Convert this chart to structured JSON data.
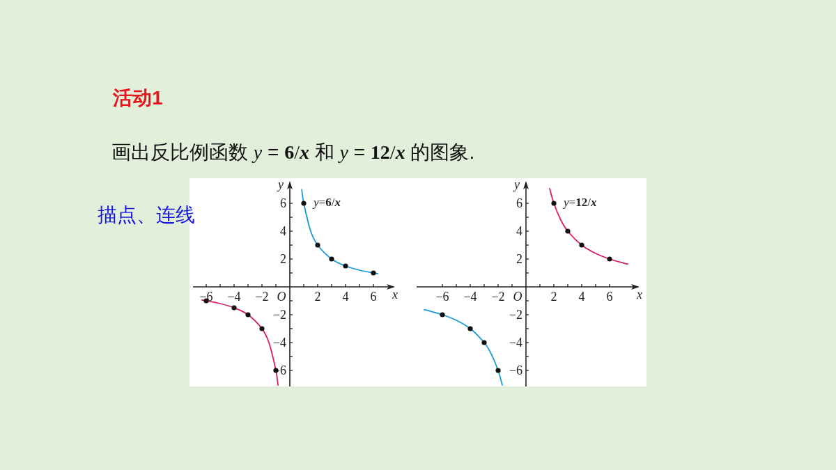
{
  "chart_data": [
    {
      "type": "line",
      "title": "画出反比例函数 y = 6/x 和 y = 12/x 的图象.",
      "annotations": [
        "活动1",
        "描点、连线",
        "O"
      ],
      "xlabel": "x",
      "ylabel": "y",
      "xlim": [
        -6.95,
        7.55
      ],
      "ylim": [
        -7.15,
        7.6
      ],
      "xticks": [
        -6,
        {
          "value": -5,
          "label": null
        },
        -4,
        {
          "value": -3,
          "label": null
        },
        -2,
        {
          "value": -1,
          "label": null
        },
        {
          "value": 1,
          "label": null
        },
        2,
        {
          "value": 3,
          "label": null
        },
        4,
        {
          "value": 5,
          "label": null
        },
        6
      ],
      "yticks": [
        -6,
        {
          "value": -5,
          "label": null
        },
        -4,
        {
          "value": -3,
          "label": null
        },
        -2,
        {
          "value": -1,
          "label": null
        },
        {
          "value": 1,
          "label": null
        },
        2,
        {
          "value": 3,
          "label": null
        },
        4,
        {
          "value": 5,
          "label": null
        },
        6
      ],
      "series": [
        {
          "name": "y=6/x",
          "color": "#1a9ad6",
          "x": [
            0.86,
            1,
            1.5,
            2,
            3,
            4,
            5,
            6,
            6.3
          ],
          "values": [
            6.98,
            6,
            4,
            3,
            2,
            1.5,
            1.2,
            1,
            0.95
          ]
        },
        {
          "color": "#d81b6a",
          "x": [
            -6.3,
            -6,
            -5,
            -4,
            -3,
            -2,
            -1.5,
            -1,
            -0.85
          ],
          "values": [
            -0.95,
            -1,
            -1.2,
            -1.5,
            -2,
            -3,
            -4,
            -6,
            -7.06
          ]
        },
        {
          "type": "scatter",
          "color": "#111111",
          "x": [
            -6,
            -4,
            -3,
            -2,
            -1,
            1,
            2,
            3,
            4,
            6
          ],
          "values": [
            -1,
            -1.5,
            -2,
            -3,
            -6,
            6,
            3,
            2,
            1.5,
            1
          ]
        }
      ]
    },
    {
      "type": "line",
      "annotations": [
        "O"
      ],
      "xlabel": "x",
      "ylabel": "y",
      "xlim": [
        -7.85,
        8.15
      ],
      "ylim": [
        -7.15,
        7.6
      ],
      "xticks": [
        -6,
        {
          "value": -5,
          "label": null
        },
        -4,
        {
          "value": -3,
          "label": null
        },
        -2,
        {
          "value": -1,
          "label": null
        },
        {
          "value": 1,
          "label": null
        },
        2,
        {
          "value": 3,
          "label": null
        },
        4,
        {
          "value": 5,
          "label": null
        },
        6
      ],
      "yticks": [
        -6,
        {
          "value": -5,
          "label": null
        },
        -4,
        {
          "value": -3,
          "label": null
        },
        -2,
        {
          "value": -1,
          "label": null
        },
        {
          "value": 1,
          "label": null
        },
        2,
        {
          "value": 3,
          "label": null
        },
        4,
        {
          "value": 5,
          "label": null
        },
        6
      ],
      "series": [
        {
          "name": "y=12/x",
          "color": "#d81b6a",
          "x": [
            1.7,
            2,
            2.5,
            3,
            4,
            5,
            6,
            7,
            7.3
          ],
          "values": [
            7.06,
            6,
            4.8,
            4,
            3,
            2.4,
            2,
            1.71,
            1.64
          ]
        },
        {
          "color": "#1a9ad6",
          "x": [
            -7.3,
            -7,
            -6,
            -5,
            -4,
            -3,
            -2.5,
            -2,
            -1.7
          ],
          "values": [
            -1.64,
            -1.71,
            -2,
            -2.4,
            -3,
            -4,
            -4.8,
            -6,
            -7.06
          ]
        },
        {
          "type": "scatter",
          "color": "#111111",
          "x": [
            -6,
            -4,
            -3,
            -2,
            2,
            3,
            4,
            6
          ],
          "values": [
            -2,
            -3,
            -4,
            -6,
            6,
            4,
            3,
            2
          ]
        }
      ]
    }
  ]
}
